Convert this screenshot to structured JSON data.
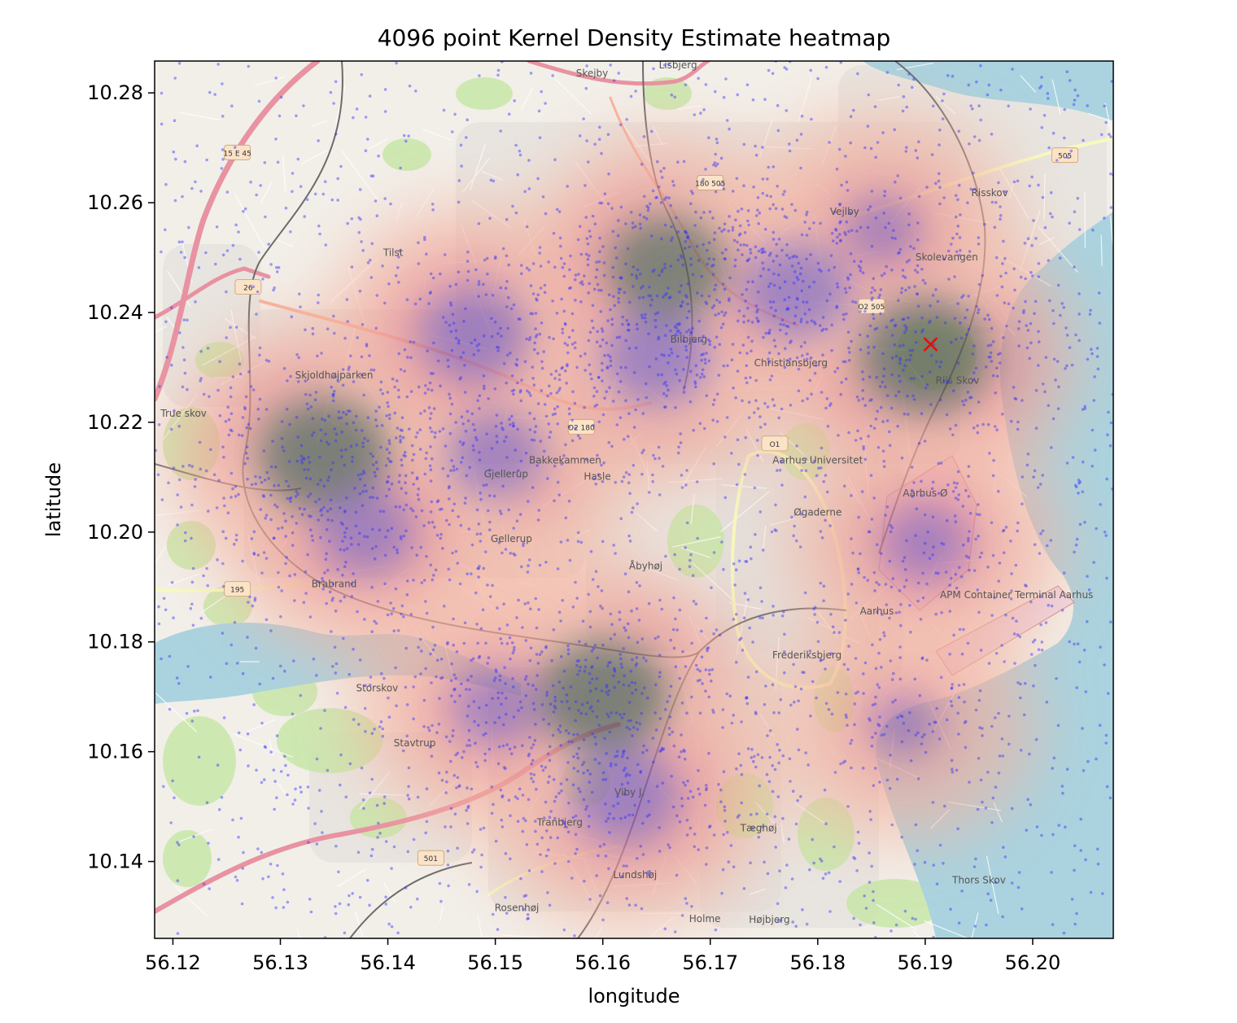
{
  "chart_data": {
    "type": "heatmap",
    "title": "4096 point Kernel Density Estimate heatmap",
    "xlabel": "longitude",
    "ylabel": "latitude",
    "xlim": [
      56.1183,
      56.2075
    ],
    "ylim": [
      10.126,
      10.2858
    ],
    "xticks": [
      56.12,
      56.13,
      56.14,
      56.15,
      56.16,
      56.17,
      56.18,
      56.19,
      56.2
    ],
    "xtick_labels": [
      "56.12",
      "56.13",
      "56.14",
      "56.15",
      "56.16",
      "56.17",
      "56.18",
      "56.19",
      "56.20"
    ],
    "yticks": [
      10.14,
      10.16,
      10.18,
      10.2,
      10.22,
      10.24,
      10.26,
      10.28
    ],
    "ytick_labels": [
      "10.14",
      "10.16",
      "10.18",
      "10.20",
      "10.22",
      "10.24",
      "10.26",
      "10.28"
    ],
    "grid": false,
    "sample_points": {
      "count": 4096,
      "color": "#3333ff",
      "x_range": [
        56.1183,
        56.2075
      ],
      "y_range": [
        10.126,
        10.2858
      ]
    },
    "density_hotspots": [
      {
        "x": 56.134,
        "y": 10.214,
        "weight": 1.0
      },
      {
        "x": 56.15,
        "y": 10.214,
        "weight": 0.7
      },
      {
        "x": 56.148,
        "y": 10.236,
        "weight": 0.8
      },
      {
        "x": 56.165,
        "y": 10.232,
        "weight": 0.8
      },
      {
        "x": 56.166,
        "y": 10.248,
        "weight": 0.9
      },
      {
        "x": 56.178,
        "y": 10.244,
        "weight": 0.8
      },
      {
        "x": 56.16,
        "y": 10.17,
        "weight": 1.0
      },
      {
        "x": 56.162,
        "y": 10.152,
        "weight": 0.8
      },
      {
        "x": 56.15,
        "y": 10.168,
        "weight": 0.6
      },
      {
        "x": 56.19,
        "y": 10.232,
        "weight": 1.0
      },
      {
        "x": 56.19,
        "y": 10.198,
        "weight": 0.6
      },
      {
        "x": 56.188,
        "y": 10.165,
        "weight": 0.4
      },
      {
        "x": 56.138,
        "y": 10.2,
        "weight": 0.7
      },
      {
        "x": 56.186,
        "y": 10.255,
        "weight": 0.5
      }
    ],
    "marker": {
      "x": 56.1905,
      "y": 10.2342,
      "symbol": "x",
      "color": "#ff0000"
    },
    "basemap_labels": [
      {
        "text": "Tilst",
        "x": 56.1405,
        "y": 10.2503
      },
      {
        "text": "Christiansbjerg",
        "x": 56.1775,
        "y": 10.2302
      },
      {
        "text": "Bilbjerg",
        "x": 56.168,
        "y": 10.2345
      },
      {
        "text": "Vejlby",
        "x": 56.1825,
        "y": 10.2578
      },
      {
        "text": "Skolevangen",
        "x": 56.192,
        "y": 10.2495
      },
      {
        "text": "Risskov",
        "x": 56.196,
        "y": 10.2612
      },
      {
        "text": "Gellerup",
        "x": 56.1515,
        "y": 10.1982
      },
      {
        "text": "Brabrand",
        "x": 56.135,
        "y": 10.19
      },
      {
        "text": "Åbyhøj",
        "x": 56.164,
        "y": 10.1932
      },
      {
        "text": "Aarhus Ø",
        "x": 56.19,
        "y": 10.2065
      },
      {
        "text": "Aarhus",
        "x": 56.1855,
        "y": 10.185
      },
      {
        "text": "Aarhus Universitet",
        "x": 56.18,
        "y": 10.2125
      },
      {
        "text": "Frederiksbjerg",
        "x": 56.179,
        "y": 10.177
      },
      {
        "text": "Stavtrup",
        "x": 56.1425,
        "y": 10.161
      },
      {
        "text": "Viby J.",
        "x": 56.1625,
        "y": 10.152
      },
      {
        "text": "Tranbjerg",
        "x": 56.156,
        "y": 10.1465
      },
      {
        "text": "Tæghøj",
        "x": 56.1745,
        "y": 10.1455
      },
      {
        "text": "Lundshøj",
        "x": 56.163,
        "y": 10.137
      },
      {
        "text": "Rosenhøj",
        "x": 56.152,
        "y": 10.131
      },
      {
        "text": "Holme",
        "x": 56.1695,
        "y": 10.129
      },
      {
        "text": "Højbjerg",
        "x": 56.1755,
        "y": 10.1288
      },
      {
        "text": "Storskov",
        "x": 56.139,
        "y": 10.171
      },
      {
        "text": "True skov",
        "x": 56.121,
        "y": 10.221
      },
      {
        "text": "APM Container Terminal Aarhus",
        "x": 56.1985,
        "y": 10.188
      },
      {
        "text": "Thors Skov",
        "x": 56.195,
        "y": 10.136
      },
      {
        "text": "Skjoldhøjparken",
        "x": 56.135,
        "y": 10.228
      },
      {
        "text": "Gjellerup",
        "x": 56.151,
        "y": 10.21
      },
      {
        "text": "Bakkekammen",
        "x": 56.1565,
        "y": 10.2125
      },
      {
        "text": "Hasle",
        "x": 56.1595,
        "y": 10.2095
      },
      {
        "text": "Øgaderne",
        "x": 56.18,
        "y": 10.203
      },
      {
        "text": "Riis Skov",
        "x": 56.193,
        "y": 10.227
      },
      {
        "text": "Skejby",
        "x": 56.159,
        "y": 10.283
      },
      {
        "text": "Lisbjerg",
        "x": 56.167,
        "y": 10.2845
      }
    ],
    "road_labels": [
      {
        "text": "15 E 45",
        "x": 56.126,
        "y": 10.269
      },
      {
        "text": "26",
        "x": 56.127,
        "y": 10.2445
      },
      {
        "text": "195",
        "x": 56.126,
        "y": 10.1895
      },
      {
        "text": "501",
        "x": 56.144,
        "y": 10.1405
      },
      {
        "text": "505",
        "x": 56.203,
        "y": 10.2685
      },
      {
        "text": "O2 180",
        "x": 56.158,
        "y": 10.219
      },
      {
        "text": "180 505",
        "x": 56.17,
        "y": 10.2635
      },
      {
        "text": "O2 505",
        "x": 56.185,
        "y": 10.241
      },
      {
        "text": "O1",
        "x": 56.176,
        "y": 10.216
      }
    ]
  },
  "colors": {
    "axes": "#000000",
    "land": "#f2efe9",
    "water": "#aad3df",
    "forest": "#c8e6a8",
    "residential": "#e0ddd8",
    "motorway": "#e892a2",
    "trunk": "#f9b29c",
    "secondary": "#f7fabf",
    "point": "#3333ff",
    "kde_low": "#f4b4a0",
    "kde_mid": "#e8808a",
    "kde_high": "#7050b8",
    "kde_peak": "#405048"
  }
}
